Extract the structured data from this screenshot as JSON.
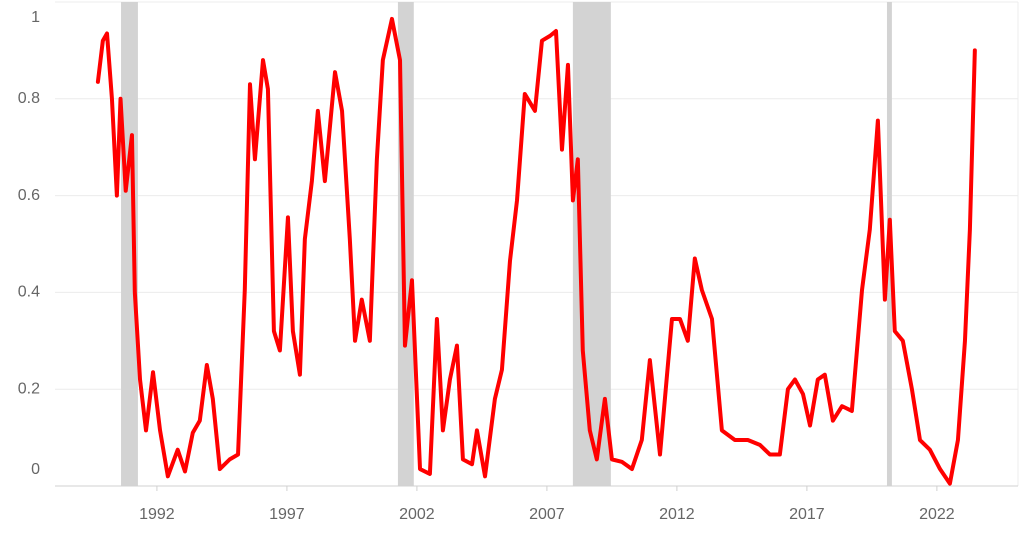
{
  "chart_data": {
    "type": "line",
    "x": [
      1989.73,
      1989.92,
      1990.08,
      1990.27,
      1990.46,
      1990.6,
      1990.8,
      1991.04,
      1991.15,
      1991.35,
      1991.58,
      1991.85,
      1992.12,
      1992.42,
      1992.8,
      1993.08,
      1993.38,
      1993.65,
      1993.92,
      1994.15,
      1994.42,
      1994.8,
      1995.12,
      1995.38,
      1995.58,
      1995.77,
      1996.08,
      1996.27,
      1996.5,
      1996.73,
      1997.04,
      1997.23,
      1997.5,
      1997.69,
      1997.96,
      1998.19,
      1998.46,
      1998.85,
      1999.12,
      1999.42,
      1999.62,
      1999.88,
      2000.19,
      2000.46,
      2000.69,
      2001.04,
      2001.35,
      2001.54,
      2001.81,
      2002.12,
      2002.5,
      2002.77,
      2003.0,
      2003.27,
      2003.54,
      2003.77,
      2004.12,
      2004.31,
      2004.62,
      2005.0,
      2005.27,
      2005.58,
      2005.85,
      2006.15,
      2006.54,
      2006.81,
      2007.12,
      2007.35,
      2007.58,
      2007.81,
      2008.0,
      2008.19,
      2008.38,
      2008.65,
      2008.92,
      2009.23,
      2009.5,
      2009.88,
      2010.27,
      2010.65,
      2010.96,
      2011.35,
      2011.81,
      2012.12,
      2012.42,
      2012.69,
      2012.96,
      2013.35,
      2013.73,
      2014.23,
      2014.73,
      2015.19,
      2015.58,
      2015.96,
      2016.27,
      2016.54,
      2016.85,
      2017.12,
      2017.42,
      2017.69,
      2018.0,
      2018.35,
      2018.73,
      2019.12,
      2019.42,
      2019.73,
      2020.0,
      2020.19,
      2020.38,
      2020.69,
      2021.04,
      2021.35,
      2021.73,
      2022.12,
      2022.5,
      2022.81,
      2023.08,
      2023.27,
      2023.46
    ],
    "series": [
      {
        "color": "#ff0000",
        "values": [
          0.835,
          0.92,
          0.935,
          0.8,
          0.6,
          0.8,
          0.61,
          0.725,
          0.4,
          0.22,
          0.115,
          0.235,
          0.115,
          0.02,
          0.075,
          0.03,
          0.11,
          0.135,
          0.25,
          0.18,
          0.035,
          0.055,
          0.065,
          0.405,
          0.83,
          0.675,
          0.88,
          0.82,
          0.32,
          0.28,
          0.555,
          0.32,
          0.23,
          0.51,
          0.63,
          0.775,
          0.63,
          0.855,
          0.775,
          0.51,
          0.3,
          0.385,
          0.3,
          0.675,
          0.88,
          0.965,
          0.88,
          0.29,
          0.425,
          0.035,
          0.025,
          0.345,
          0.115,
          0.22,
          0.29,
          0.055,
          0.045,
          0.115,
          0.02,
          0.18,
          0.24,
          0.465,
          0.59,
          0.81,
          0.775,
          0.92,
          0.93,
          0.94,
          0.695,
          0.87,
          0.59,
          0.675,
          0.28,
          0.115,
          0.055,
          0.18,
          0.055,
          0.05,
          0.035,
          0.095,
          0.26,
          0.065,
          0.345,
          0.345,
          0.3,
          0.47,
          0.405,
          0.345,
          0.115,
          0.095,
          0.095,
          0.085,
          0.065,
          0.065,
          0.2,
          0.22,
          0.19,
          0.125,
          0.22,
          0.23,
          0.135,
          0.165,
          0.155,
          0.405,
          0.53,
          0.755,
          0.385,
          0.55,
          0.32,
          0.3,
          0.2,
          0.095,
          0.075,
          0.035,
          0.005,
          0.095,
          0.3,
          0.53,
          0.9
        ]
      }
    ],
    "recessions": [
      [
        1990.62,
        1991.27
      ],
      [
        2001.27,
        2001.88
      ],
      [
        2008.0,
        2009.46
      ],
      [
        2020.08,
        2020.27
      ]
    ],
    "recession_color": "#d3d3d3",
    "xlim": [
      1988.08,
      2025.12
    ],
    "xticks": [
      1992,
      1997,
      2002,
      2007,
      2012,
      2017,
      2022
    ],
    "ylim": [
      0,
      1
    ],
    "yticks": [
      0,
      0.2,
      0.4,
      0.6,
      0.8,
      1
    ],
    "grid": true
  }
}
